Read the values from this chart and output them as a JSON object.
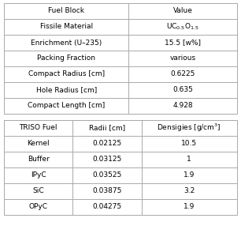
{
  "table1_headers": [
    "Fuel Block",
    "Value"
  ],
  "table1_rows": [
    [
      "Fissile Material",
      "UC$_{0.5}$O$_{1.5}$"
    ],
    [
      "Enrichment (U–235)",
      "15.5 [w%]"
    ],
    [
      "Packing Fraction",
      "various"
    ],
    [
      "Compact Radius [cm]",
      "0.6225"
    ],
    [
      "Hole Radius [cm]",
      "0.635"
    ],
    [
      "Compact Length [cm]",
      "4.928"
    ]
  ],
  "table2_headers": [
    "TRISO Fuel",
    "Radii [cm]",
    "Densigies [g/cm$^3$]"
  ],
  "table2_rows": [
    [
      "Kernel",
      "0.02125",
      "10.5"
    ],
    [
      "Buffer",
      "0.03125",
      "1"
    ],
    [
      "IPyC",
      "0.03525",
      "1.9"
    ],
    [
      "SiC",
      "0.03875",
      "3.2"
    ],
    [
      "OPyC",
      "0.04275",
      "1.9"
    ]
  ],
  "bg_color": "#ffffff",
  "line_color": "#aaaaaa",
  "font_size": 6.5
}
